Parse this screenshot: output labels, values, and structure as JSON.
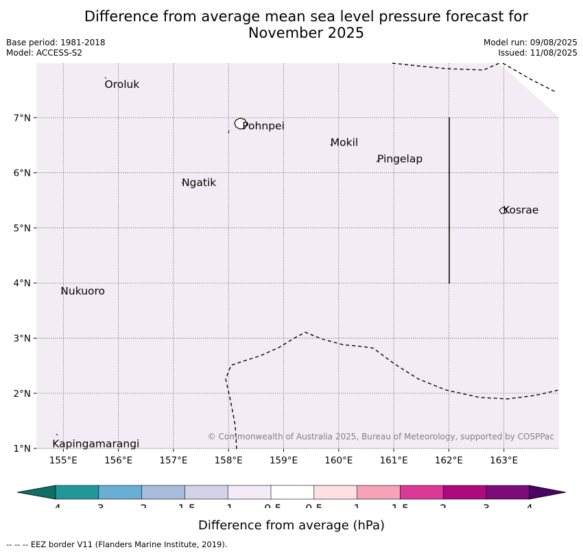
{
  "title": {
    "line1": "Difference from average mean sea level pressure forecast for",
    "line2": "November 2025"
  },
  "meta": {
    "base_period": "Base period: 1981-2018",
    "model": "Model: ACCESS-S2",
    "model_run": "Model run: 09/08/2025",
    "issued": "Issued: 11/08/2025"
  },
  "map": {
    "background_color": "#f4ecf4",
    "lon_ticks": [
      "155°E",
      "156°E",
      "157°E",
      "158°E",
      "159°E",
      "160°E",
      "161°E",
      "162°E",
      "163°E"
    ],
    "lat_ticks": [
      "7°N",
      "6°N",
      "5°N",
      "4°N",
      "3°N",
      "2°N",
      "1°N"
    ],
    "places": [
      {
        "name": "Oroluk",
        "lon": 155.75,
        "lat": 7.6
      },
      {
        "name": "Pohnpei",
        "lon": 158.25,
        "lat": 6.85
      },
      {
        "name": "Mokil",
        "lon": 159.85,
        "lat": 6.55
      },
      {
        "name": "Pingelap",
        "lon": 160.7,
        "lat": 6.25
      },
      {
        "name": "Ngatik",
        "lon": 157.15,
        "lat": 5.82
      },
      {
        "name": "Kosrae",
        "lon": 162.98,
        "lat": 5.32
      },
      {
        "name": "Nukuoro",
        "lon": 154.95,
        "lat": 3.85
      },
      {
        "name": "Kapingamarangi",
        "lon": 154.8,
        "lat": 1.08
      }
    ],
    "copyright": "© Commonwealth of Australia 2025, Bureau of Meteorology, supported by COSPPac"
  },
  "colorbar": {
    "colors": [
      "#0d6f68",
      "#21979a",
      "#69aed4",
      "#a8bcdc",
      "#d2d3e6",
      "#f3ebf7",
      "#ffffff",
      "#fde0e1",
      "#f6a2b8",
      "#da3997",
      "#ae0a7f",
      "#7d0b7a",
      "#4a0564"
    ],
    "tick_labels": [
      "-4",
      "-3",
      "-2",
      "-1.5",
      "-1",
      "-0.5",
      "0.5",
      "1",
      "1.5",
      "2",
      "3",
      "4"
    ],
    "label": "Difference from average (hPa)"
  },
  "footer": "-- -- -- EEZ border V11 (Flanders Marine Institute, 2019)."
}
